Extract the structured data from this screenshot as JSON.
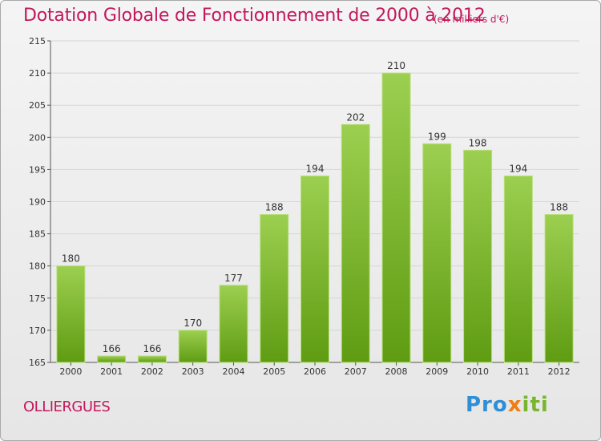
{
  "title": "Dotation Globale de Fonctionnement de 2000 à 2012",
  "unit_note": "(en milliers d'€)",
  "commune": "OLLIERGUES",
  "brand": {
    "p1": "Pro",
    "p2": "x",
    "p3": "iti"
  },
  "colors": {
    "title": "#c2185b",
    "bar_light": "#9ccf50",
    "bar_dark": "#5f9c12",
    "brand_blue": "#2e8fd6",
    "brand_orange": "#ef7d12",
    "brand_green": "#7ab52f"
  },
  "chart_data": {
    "type": "bar",
    "categories": [
      "2000",
      "2001",
      "2002",
      "2003",
      "2004",
      "2005",
      "2006",
      "2007",
      "2008",
      "2009",
      "2010",
      "2011",
      "2012"
    ],
    "values": [
      180,
      166,
      166,
      170,
      177,
      188,
      194,
      202,
      210,
      199,
      198,
      194,
      188
    ],
    "ylim": [
      165,
      215
    ],
    "yticks": [
      165,
      170,
      175,
      180,
      185,
      190,
      195,
      200,
      205,
      210,
      215
    ],
    "grid": true,
    "xlabel": "",
    "ylabel": ""
  }
}
